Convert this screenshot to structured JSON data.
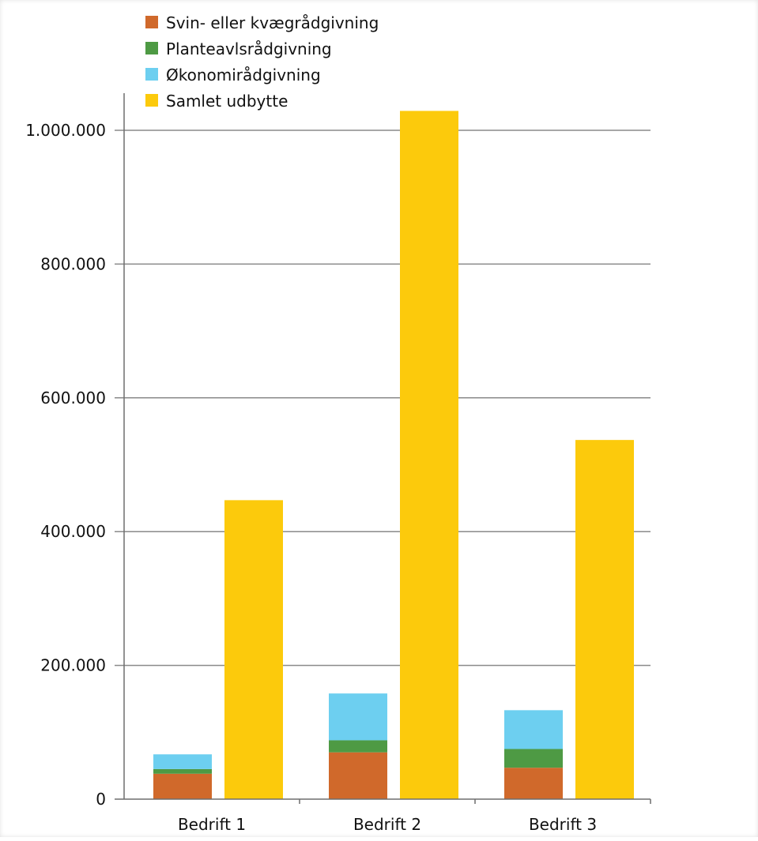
{
  "chart_data": {
    "type": "bar",
    "title": "",
    "xlabel": "",
    "ylabel": "",
    "categories": [
      "Bedrift 1",
      "Bedrift 2",
      "Bedrift 3"
    ],
    "ylim": [
      0,
      1000000
    ],
    "yticks": [
      0,
      200000,
      400000,
      600000,
      800000,
      1000000
    ],
    "ytick_labels": [
      "0",
      "200.000",
      "400.000",
      "600.000",
      "800.000",
      "1.000.000"
    ],
    "grid": true,
    "legend_position": "top-left",
    "stacked_series": [
      {
        "name": "Svin- eller kvægrådgivning",
        "color": "#d0692b",
        "values": [
          38000,
          70000,
          47000
        ]
      },
      {
        "name": "Planteavlsrådgivning",
        "color": "#4e9a44",
        "values": [
          7000,
          18000,
          28000
        ]
      },
      {
        "name": "Økonomirådgivning",
        "color": "#6dcff0",
        "values": [
          22000,
          70000,
          58000
        ]
      }
    ],
    "total_series": {
      "name": "Samlet udbytte",
      "color": "#fcca0c",
      "values": [
        447000,
        1029000,
        537000
      ]
    }
  }
}
